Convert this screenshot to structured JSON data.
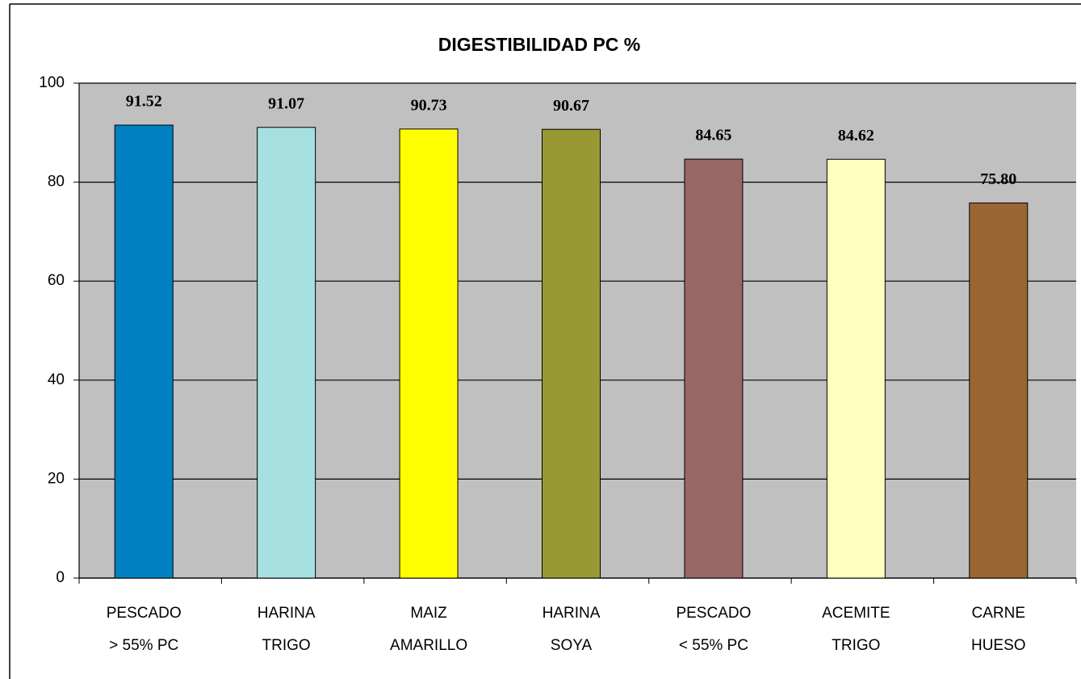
{
  "chart_data": {
    "type": "bar",
    "title": "DIGESTIBILIDAD PC %",
    "categories": [
      [
        "PESCADO",
        "> 55% PC"
      ],
      [
        "HARINA",
        "TRIGO"
      ],
      [
        "MAIZ",
        "AMARILLO"
      ],
      [
        "HARINA",
        "SOYA"
      ],
      [
        "PESCADO",
        "< 55% PC"
      ],
      [
        "ACEMITE",
        "TRIGO"
      ],
      [
        "CARNE",
        "HUESO"
      ]
    ],
    "values": [
      91.52,
      91.07,
      90.73,
      90.67,
      84.65,
      84.62,
      75.8
    ],
    "value_labels": [
      "91.52",
      "91.07",
      "90.73",
      "90.67",
      "84.65",
      "84.62",
      "75.80"
    ],
    "colors": [
      "#0080c0",
      "#a6e0e0",
      "#ffff00",
      "#999933",
      "#996666",
      "#ffffc0",
      "#996633"
    ],
    "ylim": [
      0,
      100
    ],
    "yticks": [
      0,
      20,
      40,
      60,
      80,
      100
    ],
    "grid": true
  }
}
